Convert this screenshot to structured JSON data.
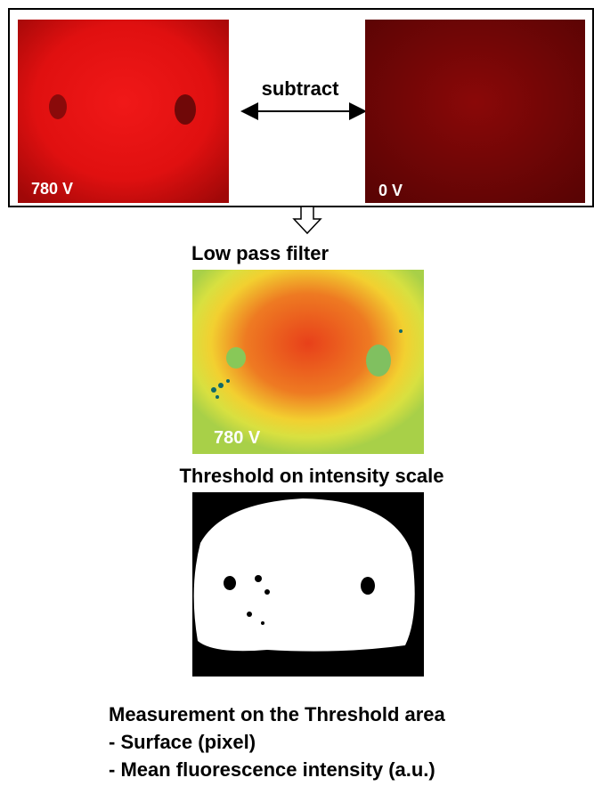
{
  "top_panel": {
    "left_image_label": "780 V",
    "operation": "subtract",
    "right_image_label": "0 V"
  },
  "step_1": {
    "title": "Low pass filter",
    "image_label": "780 V"
  },
  "step_2": {
    "title": "Threshold on intensity scale"
  },
  "result": {
    "title": "Measurement on the Threshold area",
    "items": [
      "- Surface (pixel)",
      "- Mean fluorescence intensity (a.u.)"
    ]
  }
}
